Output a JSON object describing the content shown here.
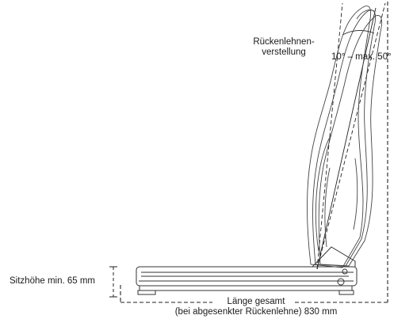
{
  "labels": {
    "backrest_line1": "Rückenlehnen-",
    "backrest_line2": "verstellung",
    "angle_range": "10° – max. 50°",
    "seat_height": "Sitzhöhe min. 65 mm",
    "length_line1": "Länge gesamt",
    "length_line2": "(bei abgesenkter Rückenlehne) 830 mm"
  }
}
